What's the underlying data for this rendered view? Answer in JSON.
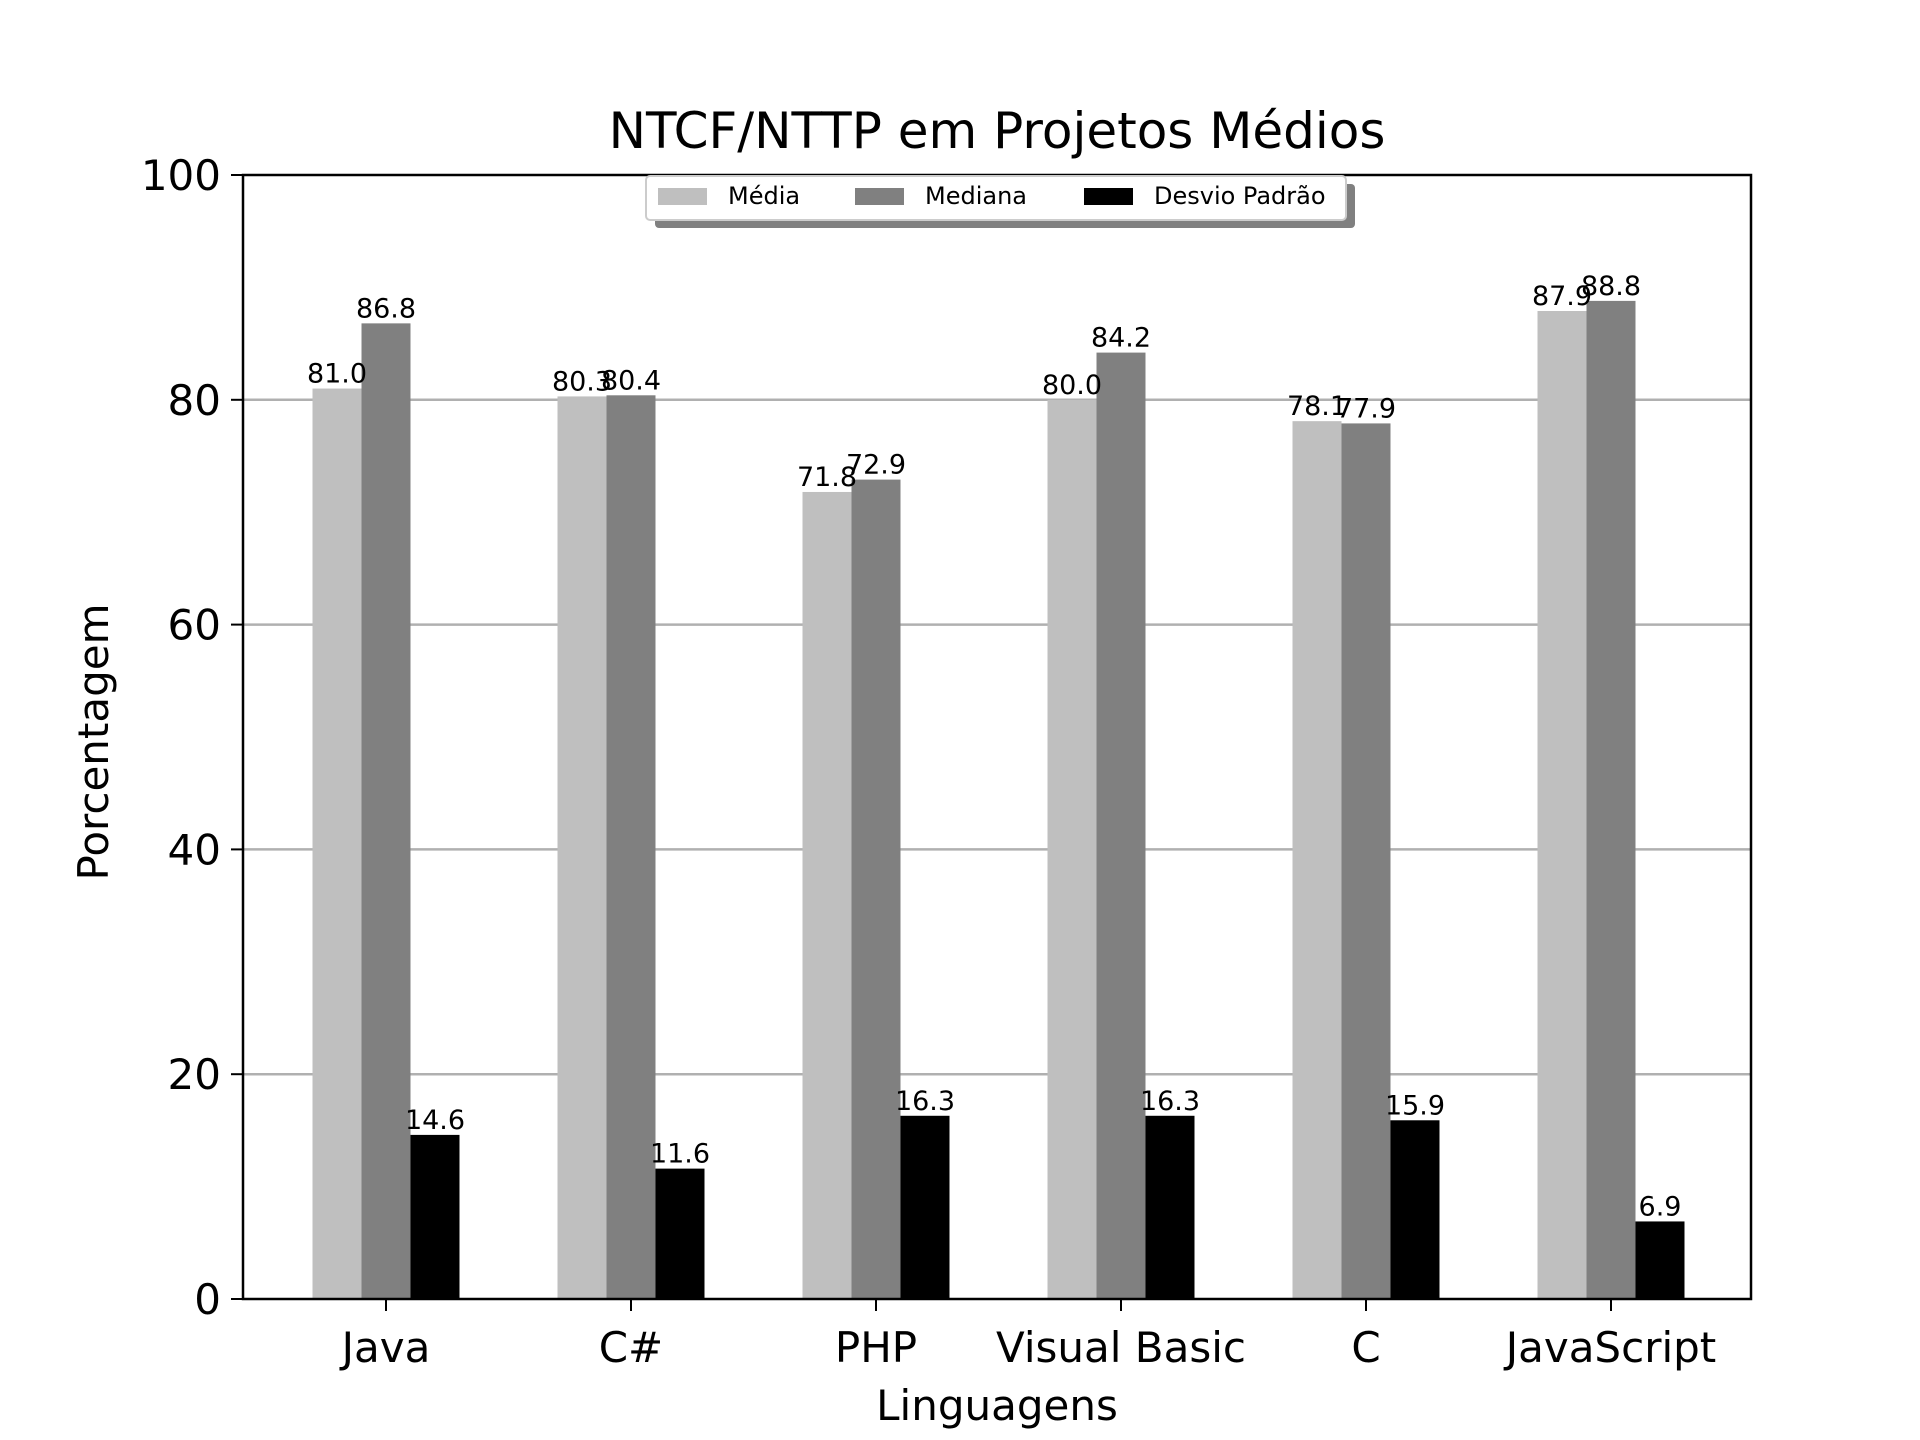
{
  "chart_data": {
    "type": "bar",
    "title": "NTCF/NTTP em Projetos Médios",
    "xlabel": "Linguagens",
    "ylabel": "Porcentagem",
    "ylim": [
      0,
      100
    ],
    "yticks": [
      "0",
      "20",
      "40",
      "60",
      "80",
      "100"
    ],
    "grid": "horizontal",
    "legend_placement": "top-center",
    "categories": [
      "Java",
      "C#",
      "PHP",
      "Visual Basic",
      "C",
      "JavaScript"
    ],
    "series": [
      {
        "name": "Média",
        "color": "#bfbfbf",
        "values": [
          81.0,
          80.3,
          71.8,
          80.0,
          78.1,
          87.9
        ],
        "labels": [
          "81.0",
          "80.3",
          "71.8",
          "80.0",
          "78.1",
          "87.9"
        ]
      },
      {
        "name": "Mediana",
        "color": "#808080",
        "values": [
          86.8,
          80.4,
          72.9,
          84.2,
          77.9,
          88.8
        ],
        "labels": [
          "86.8",
          "80.4",
          "72.9",
          "84.2",
          "77.9",
          "88.8"
        ]
      },
      {
        "name": "Desvio Padrão",
        "color": "#000000",
        "values": [
          14.6,
          11.6,
          16.3,
          16.3,
          15.9,
          6.9
        ],
        "labels": [
          "14.6",
          "11.6",
          "16.3",
          "16.3",
          "15.9",
          "6.9"
        ]
      }
    ]
  }
}
